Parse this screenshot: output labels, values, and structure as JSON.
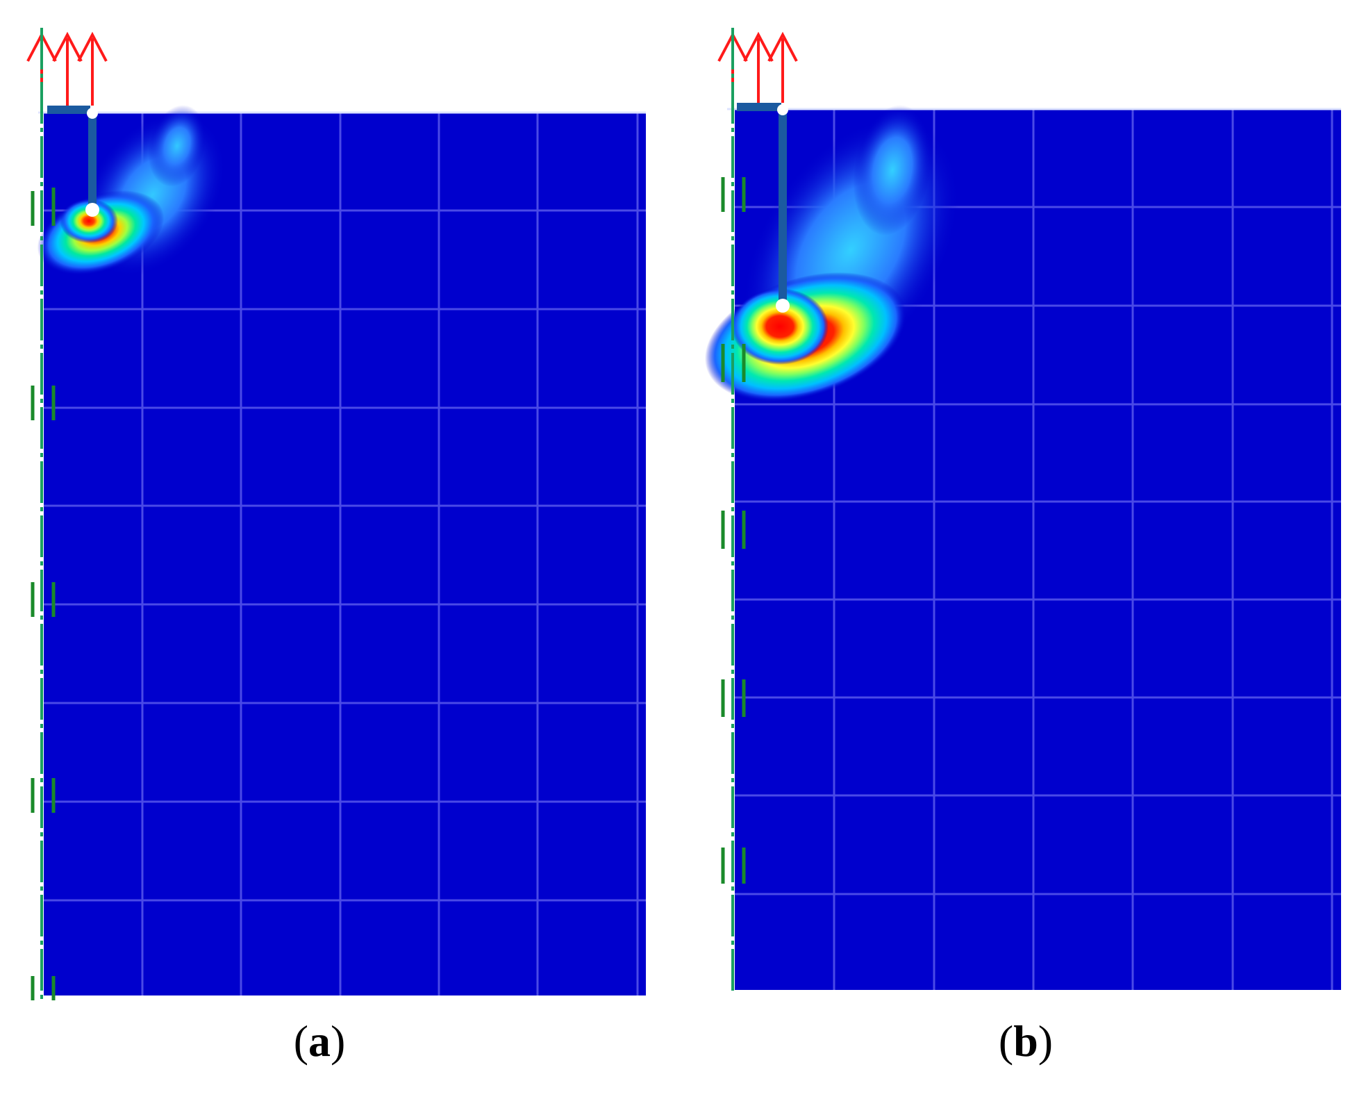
{
  "panels": [
    {
      "id": "a",
      "label": "a"
    },
    {
      "id": "b",
      "label": "b"
    }
  ],
  "colors": {
    "domain": "#0000cd",
    "grid": "#4a4ae6",
    "anchor_rod": "#1b5aa0",
    "axis_line": "#1aa060",
    "roller_marks": "#1a8a2a",
    "load_arrows": "#ff1a1a",
    "contour_low": "#0033ff",
    "contour_mid": "#00e0ff",
    "contour_high": "#ffff00",
    "contour_peak": "#ff0000"
  },
  "icons": {
    "load": "upward-arrow-icon",
    "anchor": "anchor-plate-icon",
    "support": "roller-support-icon"
  },
  "caption_format": "parenthesized-bold-letter"
}
